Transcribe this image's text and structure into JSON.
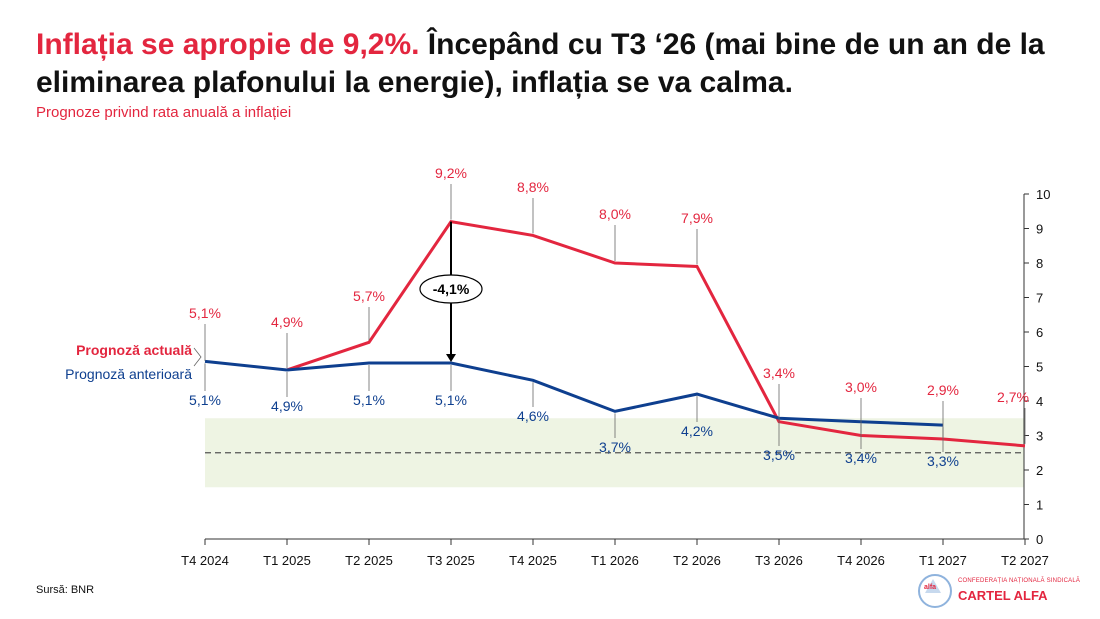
{
  "title": {
    "highlight": "Inflația se apropie de 9,2%.",
    "rest": " Începând cu T3 ‘26 (mai bine de un an de la eliminarea plafonului la energie), inflația se va calma."
  },
  "subtitle": "Prognoze privind rata anuală a inflației",
  "source": "Sursă: BNR",
  "logo": {
    "small": "CONFEDERAȚIA NAȚIONALĂ SINDICALĂ",
    "big": "CARTEL ALFA",
    "mini": "alfa"
  },
  "colors": {
    "current": "#e3263f",
    "previous": "#0e3f8f",
    "band": "#eef4e3",
    "axis": "#333333"
  },
  "chart_data": {
    "type": "line",
    "categories": [
      "T4 2024",
      "T1 2025",
      "T2 2025",
      "T3 2025",
      "T4 2025",
      "T1 2026",
      "T2 2026",
      "T3 2026",
      "T4 2026",
      "T1 2027",
      "T2 2027"
    ],
    "ylim": [
      0,
      10
    ],
    "yticks": [
      "0",
      "1",
      "2",
      "3",
      "4",
      "5",
      "6",
      "7",
      "8",
      "9",
      "10"
    ],
    "y_axis_side": "right",
    "series": [
      {
        "name": "Prognoză actuală",
        "key": "current",
        "values": [
          null,
          4.9,
          5.7,
          9.2,
          8.8,
          8.0,
          7.9,
          3.4,
          3.0,
          2.9,
          2.7
        ],
        "labels": [
          "5,1%",
          "4,9%",
          "5,7%",
          "9,2%",
          "8,8%",
          "8,0%",
          "7,9%",
          "3,4%",
          "3,0%",
          "2,9%",
          "2,7%"
        ]
      },
      {
        "name": "Prognoză anterioară",
        "key": "previous",
        "values": [
          5.15,
          4.9,
          5.1,
          5.1,
          4.6,
          3.7,
          4.2,
          3.5,
          3.4,
          3.3,
          null
        ],
        "labels": [
          "5,1%",
          "4,9%",
          "5,1%",
          "5,1%",
          "4,6%",
          "3,7%",
          "4,2%",
          "3,5%",
          "3,4%",
          "3,3%",
          null
        ]
      }
    ],
    "target_band": [
      1.5,
      3.5
    ],
    "target_line": 2.5,
    "annotation": {
      "text": "-4,1%",
      "category": "T3 2025",
      "from": 9.2,
      "to": 5.1
    }
  }
}
